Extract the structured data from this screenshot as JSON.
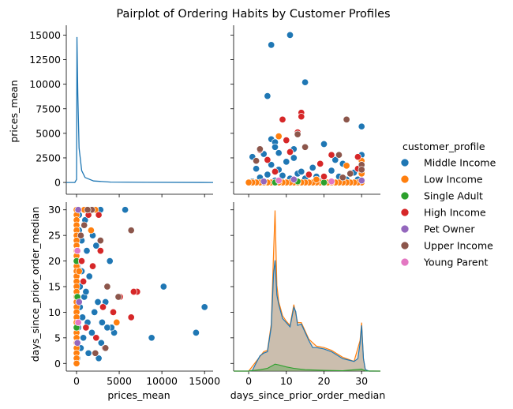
{
  "chart_data": {
    "type": "scatter",
    "title": "Pairplot of Ordering Habits by Customer Profiles",
    "variables": [
      "prices_mean",
      "days_since_prior_order_median"
    ],
    "legend": {
      "title": "customer_profile",
      "placement": "right",
      "entries": [
        {
          "name": "Middle Income",
          "color": "#1f77b4"
        },
        {
          "name": "Low Income",
          "color": "#ff7f0e"
        },
        {
          "name": "Single Adult",
          "color": "#2ca02c"
        },
        {
          "name": "High Income",
          "color": "#d62728"
        },
        {
          "name": "Pet Owner",
          "color": "#9467bd"
        },
        {
          "name": "Upper Income",
          "color": "#8c564b"
        },
        {
          "name": "Young Parent",
          "color": "#e377c2"
        }
      ]
    },
    "axes": {
      "prices_mean": {
        "label": "prices_mean",
        "range": [
          -1200,
          16000
        ],
        "ticks": [
          0,
          2500,
          5000,
          7500,
          10000,
          12500,
          15000
        ],
        "x_ticks": [
          0,
          5000,
          10000,
          15000
        ],
        "x_tick_labels": [
          "0",
          "5000",
          "10000",
          "15000"
        ],
        "y_tick_labels": [
          "0",
          "2500",
          "5000",
          "7500",
          "10000",
          "12500",
          "15000"
        ]
      },
      "days_since_prior_order_median": {
        "label": "days_since_prior_order_median",
        "range": [
          -1.5,
          31.5
        ],
        "ticks": [
          0,
          5,
          10,
          15,
          20,
          25,
          30
        ],
        "x_range": [
          -4,
          35
        ],
        "x_ticks": [
          0,
          10,
          20,
          30
        ],
        "x_tick_labels": [
          "0",
          "10",
          "20",
          "30"
        ],
        "y_tick_labels": [
          "0",
          "5",
          "10",
          "15",
          "20",
          "25",
          "30"
        ]
      }
    },
    "points": [
      [
        14000,
        6,
        "Middle Income"
      ],
      [
        15000,
        11,
        "Middle Income"
      ],
      [
        10200,
        15,
        "Middle Income"
      ],
      [
        8800,
        5,
        "Middle Income"
      ],
      [
        5700,
        30,
        "Middle Income"
      ],
      [
        4400,
        6,
        "Middle Income"
      ],
      [
        4100,
        7,
        "Middle Income"
      ],
      [
        3900,
        20,
        "Middle Income"
      ],
      [
        3400,
        12,
        "Middle Income"
      ],
      [
        3000,
        8,
        "Middle Income"
      ],
      [
        2900,
        4,
        "Middle Income"
      ],
      [
        2600,
        1,
        "Middle Income"
      ],
      [
        2300,
        23,
        "Middle Income"
      ],
      [
        1900,
        25,
        "Middle Income"
      ],
      [
        1600,
        30,
        "Middle Income"
      ],
      [
        1500,
        17,
        "Middle Income"
      ],
      [
        1200,
        22,
        "Middle Income"
      ],
      [
        1000,
        28,
        "Middle Income"
      ],
      [
        900,
        13,
        "Middle Income"
      ],
      [
        700,
        9,
        "Middle Income"
      ],
      [
        600,
        18,
        "Middle Income"
      ],
      [
        500,
        3,
        "Middle Income"
      ],
      [
        400,
        11,
        "Middle Income"
      ],
      [
        300,
        26,
        "Middle Income"
      ],
      [
        200,
        7,
        "Middle Income"
      ],
      [
        100,
        19,
        "Middle Income"
      ],
      [
        100,
        1,
        "Middle Income"
      ],
      [
        400,
        15,
        "Middle Income"
      ],
      [
        800,
        5,
        "Middle Income"
      ],
      [
        1300,
        8,
        "Middle Income"
      ],
      [
        1800,
        6,
        "Middle Income"
      ],
      [
        2100,
        10,
        "Middle Income"
      ],
      [
        3300,
        3,
        "Middle Income"
      ],
      [
        600,
        24,
        "Middle Income"
      ],
      [
        1100,
        14,
        "Middle Income"
      ],
      [
        2800,
        30,
        "Middle Income"
      ],
      [
        3600,
        7,
        "Middle Income"
      ],
      [
        1400,
        2,
        "Middle Income"
      ],
      [
        2500,
        12,
        "Middle Income"
      ],
      [
        300,
        29,
        "Middle Income"
      ],
      [
        0,
        30,
        "Low Income"
      ],
      [
        0,
        29,
        "Low Income"
      ],
      [
        0,
        28,
        "Low Income"
      ],
      [
        0,
        27,
        "Low Income"
      ],
      [
        0,
        26,
        "Low Income"
      ],
      [
        0,
        25,
        "Low Income"
      ],
      [
        0,
        24,
        "Low Income"
      ],
      [
        0,
        23,
        "Low Income"
      ],
      [
        0,
        22,
        "Low Income"
      ],
      [
        0,
        21,
        "Low Income"
      ],
      [
        0,
        20,
        "Low Income"
      ],
      [
        0,
        19,
        "Low Income"
      ],
      [
        0,
        18,
        "Low Income"
      ],
      [
        0,
        17,
        "Low Income"
      ],
      [
        0,
        16,
        "Low Income"
      ],
      [
        0,
        15,
        "Low Income"
      ],
      [
        0,
        14,
        "Low Income"
      ],
      [
        0,
        13,
        "Low Income"
      ],
      [
        0,
        12,
        "Low Income"
      ],
      [
        0,
        11,
        "Low Income"
      ],
      [
        0,
        10,
        "Low Income"
      ],
      [
        0,
        9,
        "Low Income"
      ],
      [
        0,
        8,
        "Low Income"
      ],
      [
        0,
        7,
        "Low Income"
      ],
      [
        0,
        6,
        "Low Income"
      ],
      [
        0,
        5,
        "Low Income"
      ],
      [
        0,
        4,
        "Low Income"
      ],
      [
        0,
        3,
        "Low Income"
      ],
      [
        0,
        2,
        "Low Income"
      ],
      [
        0,
        1,
        "Low Income"
      ],
      [
        0,
        0,
        "Low Income"
      ],
      [
        4700,
        8,
        "Low Income"
      ],
      [
        2200,
        30,
        "Low Income"
      ],
      [
        1700,
        26,
        "Low Income"
      ],
      [
        900,
        30,
        "Low Income"
      ],
      [
        300,
        18,
        "Low Income"
      ],
      [
        0,
        20,
        "Single Adult"
      ],
      [
        100,
        13,
        "Single Adult"
      ],
      [
        0,
        7,
        "Single Adult"
      ],
      [
        7100,
        14,
        "High Income"
      ],
      [
        6700,
        14,
        "High Income"
      ],
      [
        6400,
        9,
        "High Income"
      ],
      [
        5100,
        13,
        "High Income"
      ],
      [
        4300,
        10,
        "High Income"
      ],
      [
        3300,
        3,
        "High Income"
      ],
      [
        2800,
        22,
        "High Income"
      ],
      [
        2300,
        5,
        "High Income"
      ],
      [
        1900,
        19,
        "High Income"
      ],
      [
        1400,
        29,
        "High Income"
      ],
      [
        1100,
        7,
        "High Income"
      ],
      [
        800,
        16,
        "High Income"
      ],
      [
        600,
        20,
        "High Income"
      ],
      [
        2600,
        29,
        "High Income"
      ],
      [
        3100,
        11,
        "High Income"
      ],
      [
        200,
        30,
        "Pet Owner"
      ],
      [
        300,
        12,
        "Pet Owner"
      ],
      [
        100,
        4,
        "Pet Owner"
      ],
      [
        6400,
        26,
        "Upper Income"
      ],
      [
        4900,
        13,
        "Upper Income"
      ],
      [
        3600,
        15,
        "Upper Income"
      ],
      [
        2800,
        24,
        "Upper Income"
      ],
      [
        2200,
        2,
        "Upper Income"
      ],
      [
        1800,
        30,
        "Upper Income"
      ],
      [
        1300,
        30,
        "Upper Income"
      ],
      [
        900,
        27,
        "Upper Income"
      ],
      [
        500,
        25,
        "Upper Income"
      ],
      [
        3400,
        3,
        "Upper Income"
      ],
      [
        100,
        22,
        "Young Parent"
      ],
      [
        200,
        8,
        "Young Parent"
      ]
    ],
    "kde": {
      "prices_mean_total": [
        [
          -1200,
          0
        ],
        [
          -200,
          0
        ],
        [
          0,
          300
        ],
        [
          50,
          14800
        ],
        [
          150,
          9000
        ],
        [
          300,
          3500
        ],
        [
          600,
          1200
        ],
        [
          1000,
          500
        ],
        [
          2000,
          150
        ],
        [
          4000,
          40
        ],
        [
          8000,
          10
        ],
        [
          16000,
          0
        ]
      ],
      "days_since_prior_order_median_total": [
        [
          -4,
          0
        ],
        [
          0,
          0
        ],
        [
          1,
          50
        ],
        [
          2,
          600
        ],
        [
          3,
          1100
        ],
        [
          4,
          1300
        ],
        [
          5,
          1400
        ],
        [
          6,
          3200
        ],
        [
          6.6,
          7000
        ],
        [
          7,
          8000
        ],
        [
          7.5,
          5500
        ],
        [
          8,
          4800
        ],
        [
          9,
          3800
        ],
        [
          10,
          3500
        ],
        [
          11,
          3200
        ],
        [
          12,
          4600
        ],
        [
          12.5,
          4300
        ],
        [
          13,
          3300
        ],
        [
          14,
          3400
        ],
        [
          15,
          2800
        ],
        [
          16,
          2200
        ],
        [
          17,
          1700
        ],
        [
          18,
          1700
        ],
        [
          20,
          1600
        ],
        [
          22,
          1400
        ],
        [
          25,
          900
        ],
        [
          28,
          700
        ],
        [
          29,
          900
        ],
        [
          29.6,
          2000
        ],
        [
          30,
          3300
        ],
        [
          30.5,
          900
        ],
        [
          31,
          100
        ],
        [
          32,
          0
        ],
        [
          35,
          0
        ]
      ],
      "days_since_prior_order_median_low_income": [
        [
          -4,
          0
        ],
        [
          0,
          0
        ],
        [
          2,
          700
        ],
        [
          4,
          1400
        ],
        [
          5,
          1500
        ],
        [
          6,
          3400
        ],
        [
          6.6,
          8500
        ],
        [
          7,
          11600
        ],
        [
          7.5,
          6200
        ],
        [
          8,
          5000
        ],
        [
          9,
          4000
        ],
        [
          10,
          3600
        ],
        [
          11,
          3300
        ],
        [
          12,
          4800
        ],
        [
          13,
          3500
        ],
        [
          14,
          3500
        ],
        [
          15,
          2900
        ],
        [
          16,
          2300
        ],
        [
          18,
          1800
        ],
        [
          20,
          1700
        ],
        [
          22,
          1500
        ],
        [
          25,
          1000
        ],
        [
          28,
          700
        ],
        [
          29.6,
          2200
        ],
        [
          30,
          3500
        ],
        [
          30.5,
          900
        ],
        [
          31,
          100
        ],
        [
          32,
          0
        ],
        [
          35,
          0
        ]
      ],
      "days_since_prior_order_median_single_adult": [
        [
          -4,
          0
        ],
        [
          0,
          0
        ],
        [
          3,
          100
        ],
        [
          5,
          200
        ],
        [
          6,
          350
        ],
        [
          7,
          500
        ],
        [
          8,
          450
        ],
        [
          10,
          300
        ],
        [
          12,
          200
        ],
        [
          15,
          100
        ],
        [
          20,
          50
        ],
        [
          25,
          20
        ],
        [
          30,
          150
        ],
        [
          31,
          10
        ],
        [
          35,
          0
        ]
      ]
    }
  }
}
